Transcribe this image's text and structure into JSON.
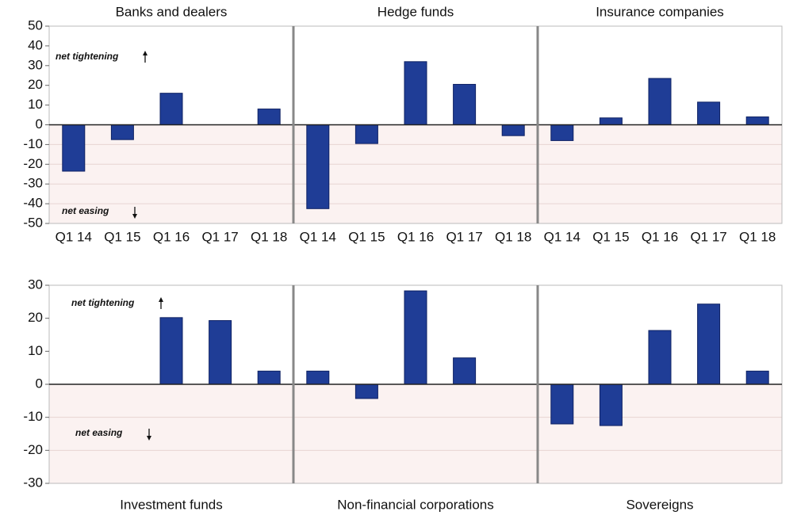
{
  "chart_data": [
    {
      "type": "bar",
      "title": "Banks and dealers",
      "categories": [
        "Q1 14",
        "Q1 15",
        "Q1 16",
        "Q1 17",
        "Q1 18"
      ],
      "values": [
        -23.5,
        -7.5,
        16,
        0,
        8
      ],
      "color": "#1f3d96",
      "ylim": [
        -50,
        50
      ],
      "yticks": [
        -50,
        -40,
        -30,
        -20,
        -10,
        0,
        10,
        20,
        30,
        40,
        50
      ],
      "annotations": [
        "net tightening",
        "net easing"
      ]
    },
    {
      "type": "bar",
      "title": "Hedge funds",
      "categories": [
        "Q1 14",
        "Q1 15",
        "Q1 16",
        "Q1 17",
        "Q1 18"
      ],
      "values": [
        -42.5,
        -9.5,
        32,
        20.5,
        -5.5
      ],
      "color": "#1f3d96",
      "ylim": [
        -50,
        50
      ]
    },
    {
      "type": "bar",
      "title": "Insurance companies",
      "categories": [
        "Q1 14",
        "Q1 15",
        "Q1 16",
        "Q1 17",
        "Q1 18"
      ],
      "values": [
        -8,
        3.5,
        23.5,
        11.5,
        4
      ],
      "color": "#1f3d96",
      "ylim": [
        -50,
        50
      ]
    },
    {
      "type": "bar",
      "title": "Investment funds",
      "values": [
        0,
        0,
        20.2,
        19.3,
        4
      ],
      "color": "#1f3d96",
      "ylim": [
        -30,
        30
      ],
      "yticks": [
        -30,
        -20,
        -10,
        0,
        10,
        20,
        30
      ],
      "annotations": [
        "net tightening",
        "net easing"
      ]
    },
    {
      "type": "bar",
      "title": "Non-financial corporations",
      "values": [
        4,
        -4.3,
        28.3,
        8,
        0
      ],
      "color": "#1f3d96",
      "ylim": [
        -30,
        30
      ]
    },
    {
      "type": "bar",
      "title": "Sovereigns",
      "values": [
        -12,
        -12.5,
        16.3,
        24.3,
        4
      ],
      "color": "#1f3d96",
      "ylim": [
        -30,
        30
      ]
    }
  ]
}
